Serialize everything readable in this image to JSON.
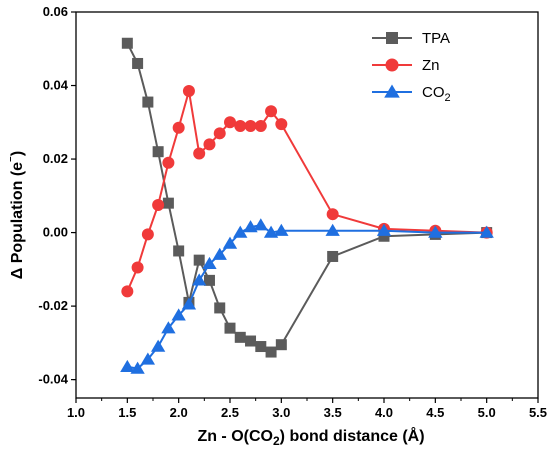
{
  "chart_data": {
    "type": "line",
    "xlabel": "Zn - O(CO2) bond distance (Å)",
    "xlabel_parts": {
      "pre": "Zn - O(CO",
      "sub": "2",
      "post": ") bond distance (Å)"
    },
    "ylabel": "Δ Population (e⁻)",
    "ylabel_parts": {
      "pre": "Δ Population (e",
      "sup": "⁻",
      "post": ")"
    },
    "xlim": [
      1.0,
      5.5
    ],
    "ylim": [
      -0.045,
      0.06
    ],
    "xticks": [
      1.0,
      1.5,
      2.0,
      2.5,
      3.0,
      3.5,
      4.0,
      4.5,
      5.0,
      5.5
    ],
    "xtick_labels": [
      "1.0",
      "1.5",
      "2.0",
      "2.5",
      "3.0",
      "3.5",
      "4.0",
      "4.5",
      "5.0",
      "5.5"
    ],
    "yticks": [
      -0.04,
      -0.02,
      0.0,
      0.02,
      0.04,
      0.06
    ],
    "ytick_labels": [
      "-0.04",
      "-0.02",
      "0.00",
      "0.02",
      "0.04",
      "0.06"
    ],
    "grid": false,
    "legend_position": "top-right",
    "series": [
      {
        "name": "TPA",
        "legend_label": "TPA",
        "marker": "square",
        "color": "#5b5b5b",
        "x": [
          1.5,
          1.6,
          1.7,
          1.8,
          1.9,
          2.0,
          2.1,
          2.2,
          2.3,
          2.4,
          2.5,
          2.6,
          2.7,
          2.8,
          2.9,
          3.0,
          3.5,
          4.0,
          4.5,
          5.0
        ],
        "y": [
          0.0515,
          0.046,
          0.0355,
          0.022,
          0.008,
          -0.005,
          -0.019,
          -0.0075,
          -0.013,
          -0.0205,
          -0.026,
          -0.0285,
          -0.0295,
          -0.031,
          -0.0325,
          -0.0305,
          -0.0065,
          -0.001,
          -0.0005,
          0.0
        ]
      },
      {
        "name": "Zn",
        "legend_label": "Zn",
        "marker": "circle",
        "color": "#f03a3a",
        "x": [
          1.5,
          1.6,
          1.7,
          1.8,
          1.9,
          2.0,
          2.1,
          2.2,
          2.3,
          2.4,
          2.5,
          2.6,
          2.7,
          2.8,
          2.9,
          3.0,
          3.5,
          4.0,
          4.5,
          5.0
        ],
        "y": [
          -0.016,
          -0.0095,
          -0.0005,
          0.0075,
          0.019,
          0.0285,
          0.0385,
          0.0215,
          0.024,
          0.027,
          0.03,
          0.029,
          0.029,
          0.029,
          0.033,
          0.0295,
          0.005,
          0.001,
          0.0005,
          0.0
        ]
      },
      {
        "name": "CO2",
        "legend_label": {
          "pre": "CO",
          "sub": "2"
        },
        "marker": "triangle",
        "color": "#1f6fe0",
        "x": [
          1.5,
          1.6,
          1.7,
          1.8,
          1.9,
          2.0,
          2.1,
          2.2,
          2.3,
          2.4,
          2.5,
          2.6,
          2.7,
          2.8,
          2.9,
          3.0,
          3.5,
          4.0,
          4.5,
          5.0
        ],
        "y": [
          -0.0365,
          -0.037,
          -0.0345,
          -0.031,
          -0.026,
          -0.0225,
          -0.0195,
          -0.013,
          -0.0085,
          -0.006,
          -0.003,
          0.0,
          0.0015,
          0.002,
          0.0,
          0.0005,
          0.0005,
          0.0005,
          0.0,
          0.0
        ]
      }
    ]
  }
}
